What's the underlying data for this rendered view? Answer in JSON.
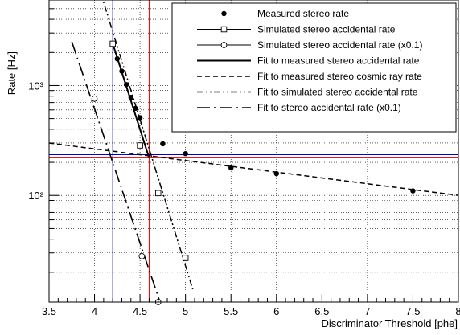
{
  "chart_data": {
    "type": "scatter",
    "xlabel": "Discriminator Threshold [phe]",
    "ylabel": "Rate [Hz]",
    "xlim": [
      3.5,
      8.0
    ],
    "ylim": [
      10.7,
      6000
    ],
    "yscale": "log",
    "grid": true,
    "legend_position": "top-right",
    "x_ticks": [
      3.5,
      4,
      4.5,
      5,
      5.5,
      6,
      6.5,
      7,
      7.5,
      8
    ],
    "x_tick_labels": [
      "3.5",
      "4",
      "4.5",
      "5",
      "5.5",
      "6",
      "6.5",
      "7",
      "7.5",
      "8"
    ],
    "y_ticks": [
      100,
      1000
    ],
    "y_tick_labels": [
      "10²",
      "10³"
    ],
    "series": [
      {
        "name": "Measured stereo rate",
        "kind": "points",
        "marker": "filled-circle",
        "x": [
          4.2,
          4.25,
          4.3,
          4.35,
          4.4,
          4.45,
          4.5,
          4.75,
          5.0,
          5.5,
          6.0,
          7.5
        ],
        "y": [
          2350,
          1750,
          1350,
          1020,
          780,
          620,
          510,
          295,
          240,
          178,
          158,
          110
        ]
      },
      {
        "name": "Simulated stereo accidental rate",
        "kind": "points",
        "marker": "open-square",
        "x": [
          4.2,
          4.5,
          4.7,
          5.0
        ],
        "y": [
          2400,
          285,
          105,
          27
        ]
      },
      {
        "name": "Simulated stereo accidental rate (x0.1)",
        "kind": "points",
        "marker": "open-circle",
        "x": [
          4.0,
          4.52,
          4.7
        ],
        "y": [
          760,
          28,
          10.7
        ]
      },
      {
        "name": "Fit to measured stereo accidental rate",
        "kind": "line",
        "dash": "solid",
        "x": [
          4.2,
          4.6
        ],
        "y": [
          2400,
          220
        ]
      },
      {
        "name": "Fit to measured stereo cosmic ray rate",
        "kind": "line",
        "dash": "dashed",
        "x": [
          3.5,
          8.0
        ],
        "y": [
          300,
          100
        ]
      },
      {
        "name": "Fit to simulated stereo accidental rate",
        "kind": "line",
        "dash": "dash-dot-dot",
        "x": [
          4.0,
          5.08
        ],
        "y": [
          10500,
          14
        ]
      },
      {
        "name": "Fit to stereo accidental rate (x0.1)",
        "kind": "line",
        "dash": "long-dash-dot",
        "x": [
          3.75,
          4.72
        ],
        "y": [
          2500,
          10.7
        ]
      }
    ],
    "reference_lines": [
      {
        "orientation": "vertical",
        "x": 4.2,
        "color": "#0000cc"
      },
      {
        "orientation": "vertical",
        "x": 4.6,
        "color": "#dd0000"
      },
      {
        "orientation": "horizontal",
        "y": 235,
        "color": "#0000cc"
      },
      {
        "orientation": "horizontal",
        "y": 220,
        "color": "#dd0000"
      }
    ]
  }
}
